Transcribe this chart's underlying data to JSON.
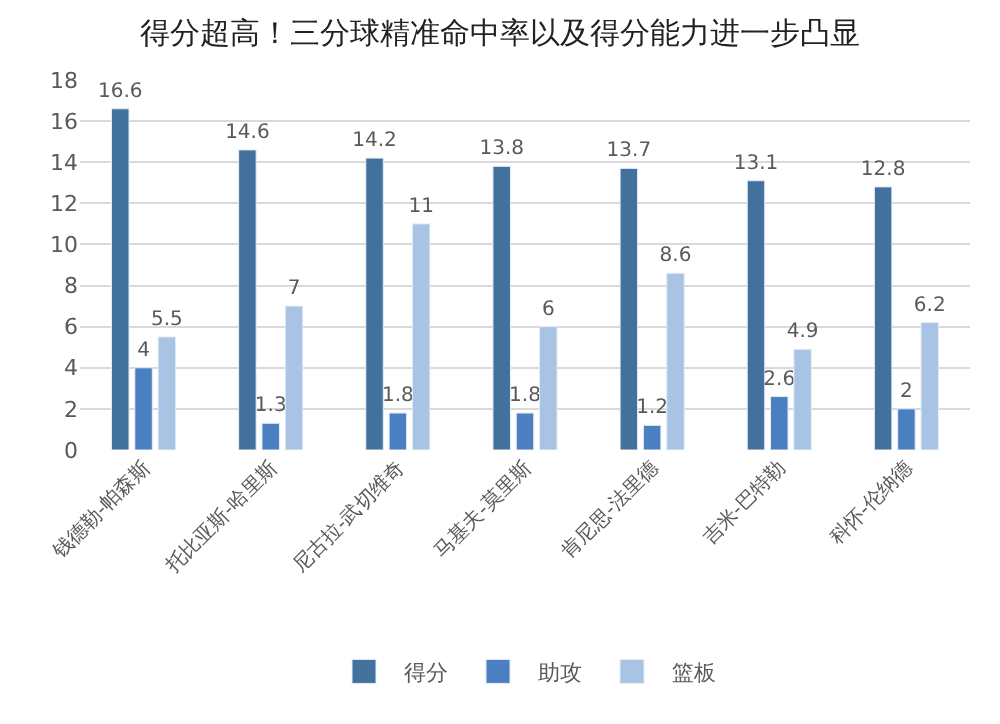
{
  "chart_data": {
    "type": "bar",
    "title": "得分超高！三分球精准命中率以及得分能力进一步凸显",
    "categories": [
      "钱德勒-帕森斯",
      "托比亚斯-哈里斯",
      "尼古拉-武切维奇",
      "马基夫-莫里斯",
      "肯尼思-法里德",
      "吉米-巴特勒",
      "科怀-伦纳德"
    ],
    "series": [
      {
        "name": "得分",
        "color": "#41719c",
        "values": [
          16.6,
          14.6,
          14.2,
          13.8,
          13.7,
          13.1,
          12.8
        ]
      },
      {
        "name": "助攻",
        "color": "#4a7fc1",
        "values": [
          4,
          1.3,
          1.8,
          1.8,
          1.2,
          2.6,
          2
        ]
      },
      {
        "name": "篮板",
        "color": "#a9c3e5",
        "values": [
          5.5,
          7,
          11,
          6,
          8.6,
          4.9,
          6.2
        ]
      }
    ],
    "ylim": [
      0,
      18
    ],
    "yticks": [
      0,
      2,
      4,
      6,
      8,
      10,
      12,
      14,
      16,
      18
    ],
    "grid": "y",
    "legend": "bottom",
    "data_labels": true
  }
}
